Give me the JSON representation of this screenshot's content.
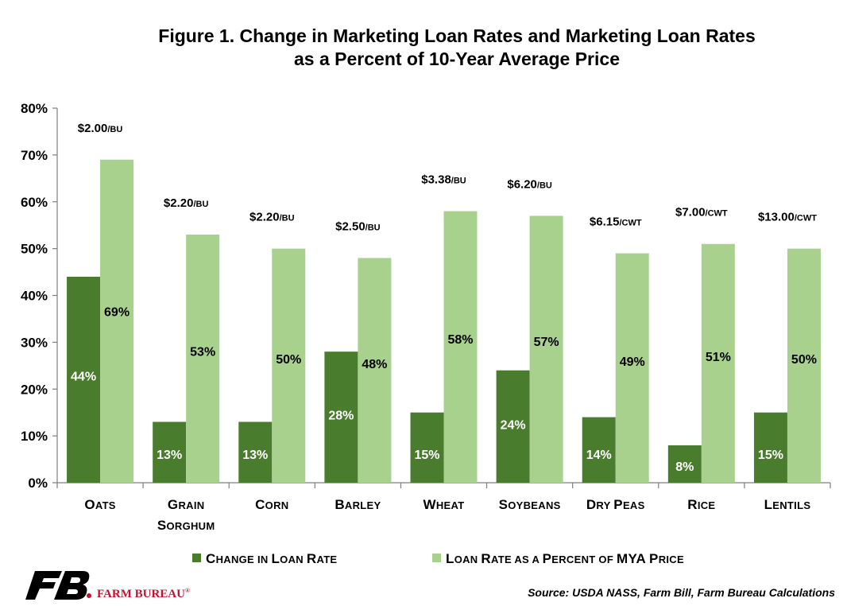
{
  "chart_data": {
    "type": "bar",
    "title": "Figure 1. Change in Marketing Loan Rates and Marketing Loan Rates",
    "subtitle": "as a Percent of 10-Year Average Price",
    "categories": [
      [
        "Oats"
      ],
      [
        "Grain",
        "Sorghum"
      ],
      [
        "Corn"
      ],
      [
        "Barley"
      ],
      [
        "Wheat"
      ],
      [
        "Soybeans"
      ],
      [
        "Dry Peas"
      ],
      [
        "Rice"
      ],
      [
        "Lentils"
      ]
    ],
    "series": [
      {
        "name": "Change in Loan Rate",
        "color": "#4a7c2e",
        "values": [
          44,
          13,
          13,
          28,
          15,
          24,
          14,
          8,
          15
        ],
        "labels": [
          "44%",
          "13%",
          "13%",
          "28%",
          "15%",
          "24%",
          "14%",
          "8%",
          "15%"
        ]
      },
      {
        "name": "Loan Rate as a Percent of MYA Price",
        "color": "#a9d18e",
        "values": [
          69,
          53,
          50,
          48,
          58,
          57,
          49,
          51,
          50
        ],
        "labels": [
          "69%",
          "53%",
          "50%",
          "48%",
          "58%",
          "57%",
          "49%",
          "51%",
          "50%"
        ]
      }
    ],
    "price_labels": [
      {
        "amount": "$2.00",
        "unit": "/bu"
      },
      {
        "amount": "$2.20",
        "unit": "/bu"
      },
      {
        "amount": "$2.20",
        "unit": "/bu"
      },
      {
        "amount": "$2.50",
        "unit": "/bu"
      },
      {
        "amount": "$3.38",
        "unit": "/bu"
      },
      {
        "amount": "$6.20",
        "unit": "/bu"
      },
      {
        "amount": "$6.15",
        "unit": "/cwt"
      },
      {
        "amount": "$7.00",
        "unit": "/cwt"
      },
      {
        "amount": "$13.00",
        "unit": "/cwt"
      }
    ],
    "ylim": [
      0,
      80
    ],
    "yticks": [
      "0%",
      "10%",
      "20%",
      "30%",
      "40%",
      "50%",
      "60%",
      "70%",
      "80%"
    ],
    "xlabel": "",
    "ylabel": "",
    "grid": false,
    "legend_position": "bottom"
  },
  "source": "Source: USDA NASS, Farm Bill, Farm Bureau Calculations",
  "logo": {
    "text": "FARM BUREAU",
    "mark": "FB",
    "registered": "®"
  },
  "colors": {
    "dark_green": "#4a7c2e",
    "light_green": "#a9d18e",
    "logo_red": "#c8102e"
  }
}
